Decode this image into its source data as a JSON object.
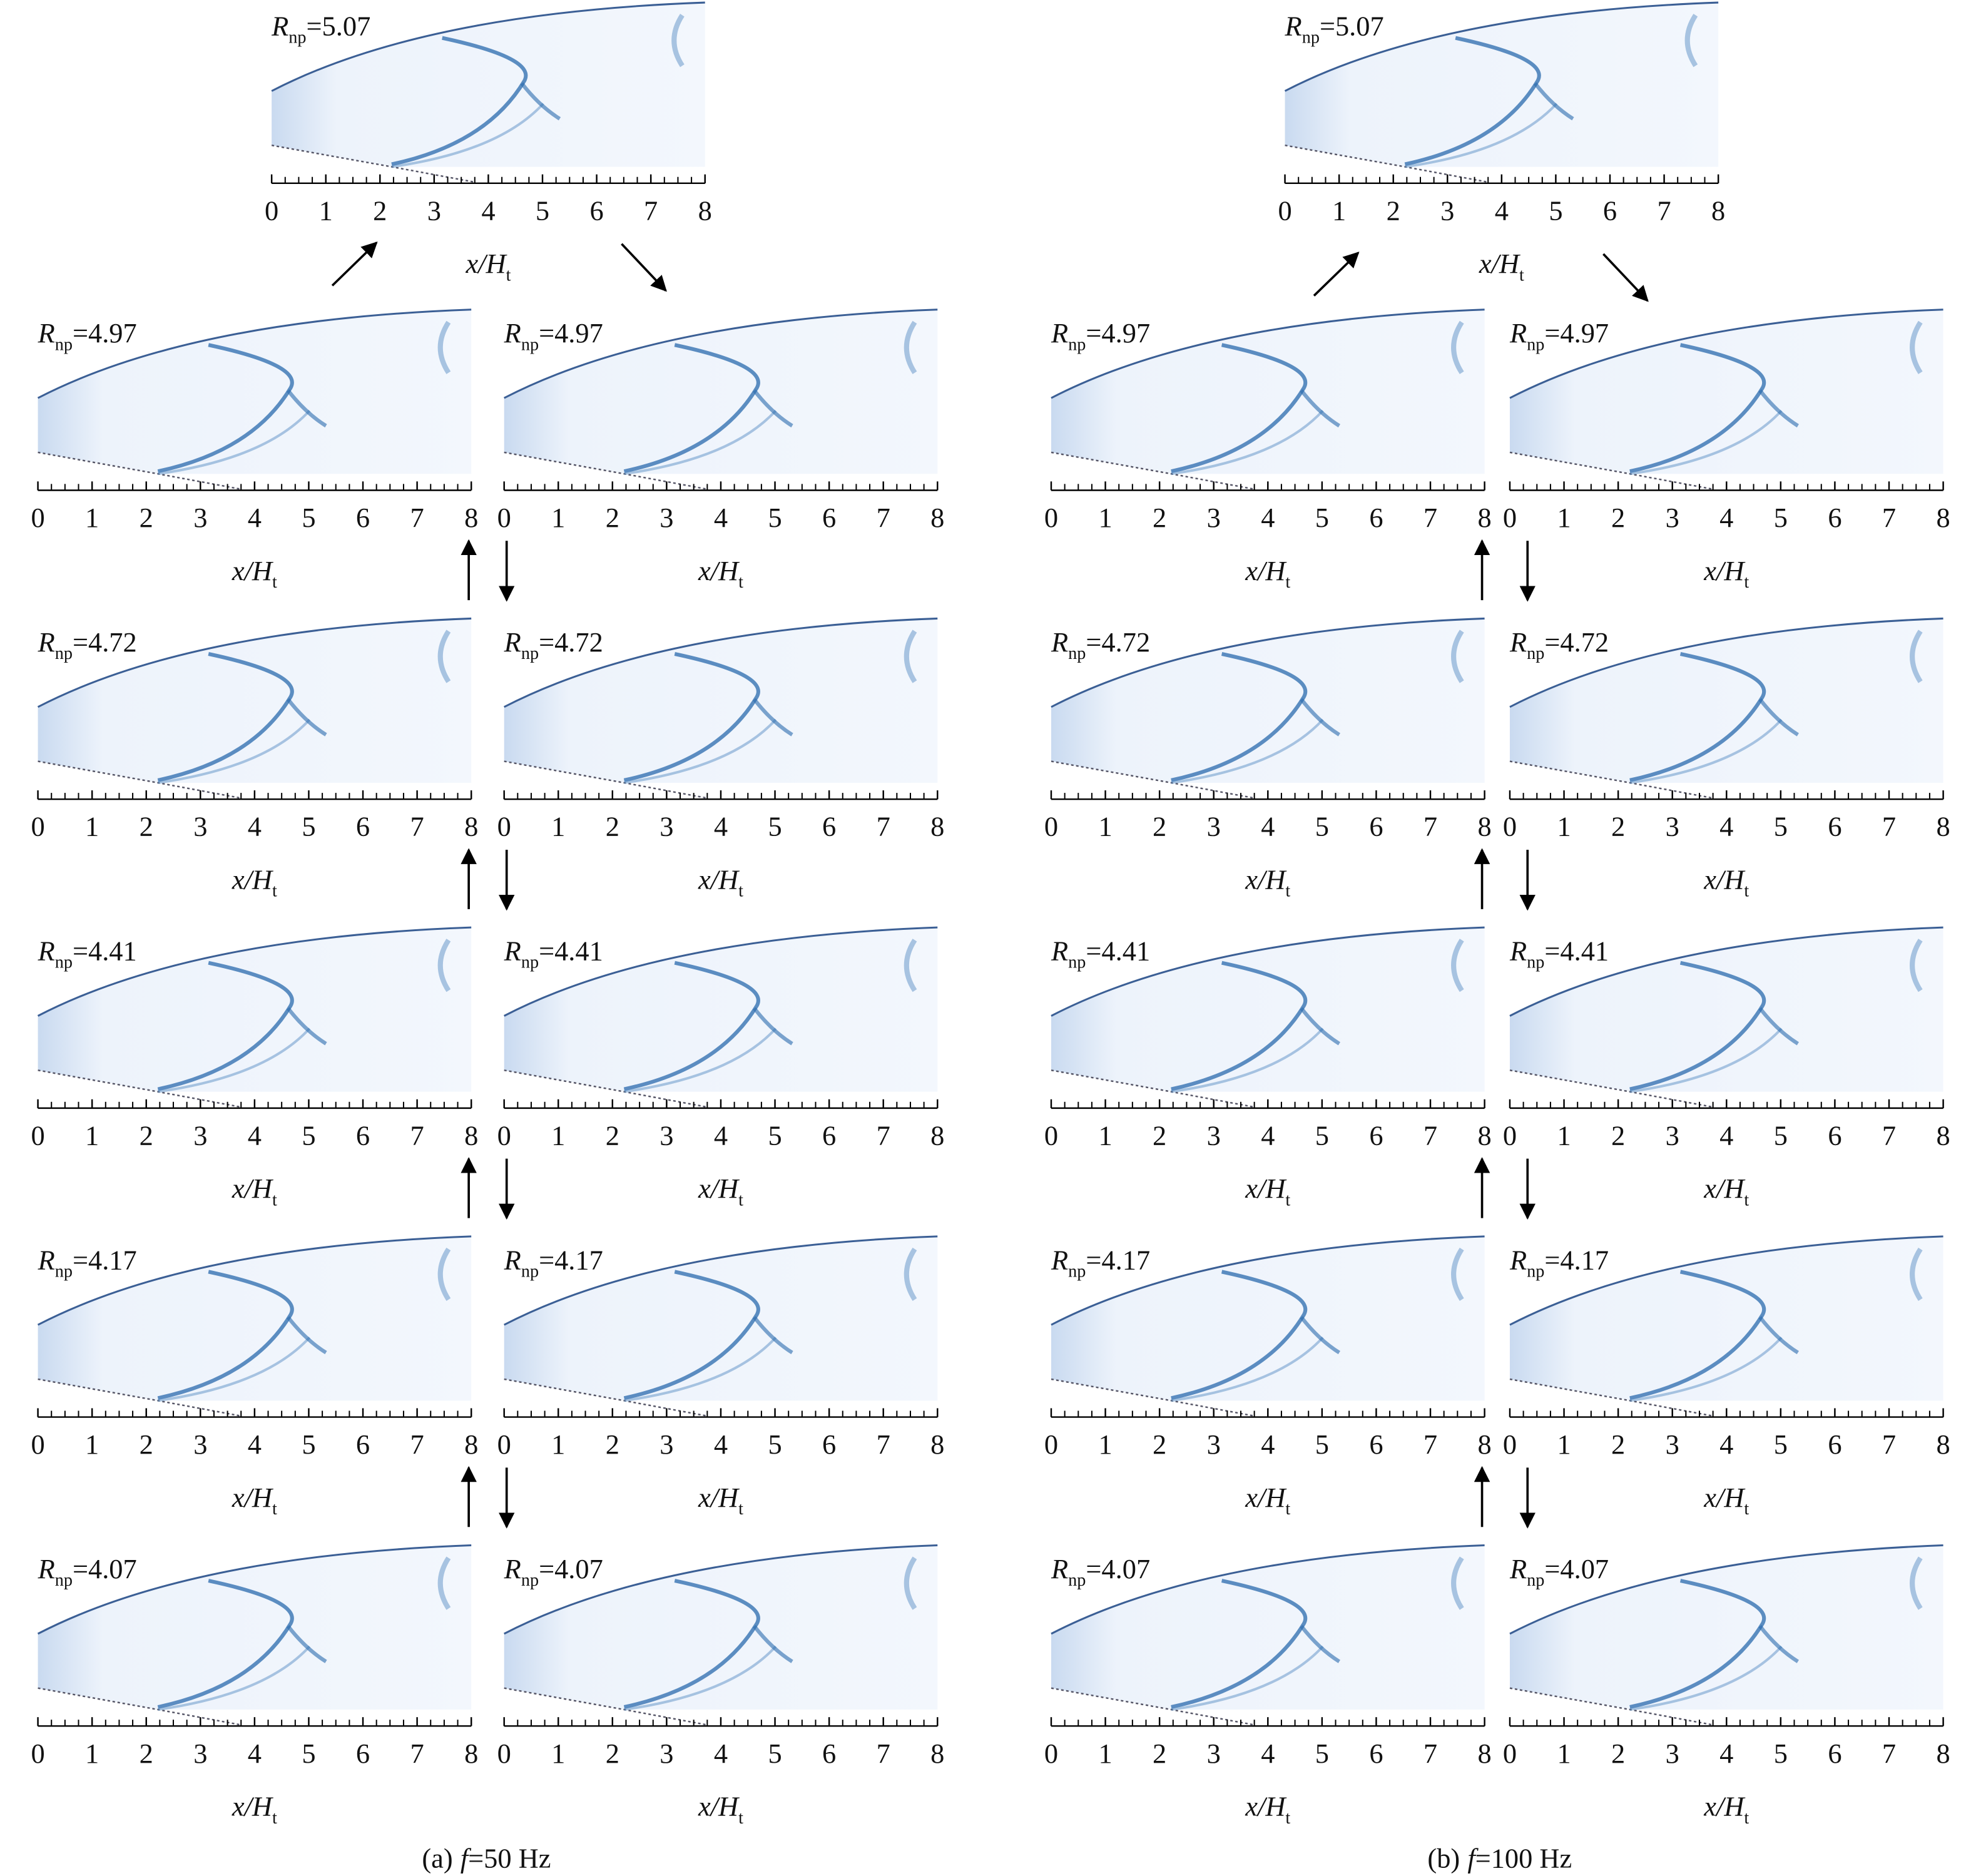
{
  "rnp_symbol": "R",
  "rnp_subscript": "np",
  "x_label": {
    "symbol": "x/H",
    "subscript": "t"
  },
  "x_ticks": [
    0,
    1,
    2,
    3,
    4,
    5,
    6,
    7,
    8
  ],
  "columns": [
    {
      "caption": {
        "prefix": "(a)",
        "symbol": "f",
        "suffix": "=50 Hz"
      },
      "top": "=5.07",
      "rows": [
        [
          "=4.97",
          "=4.97"
        ],
        [
          "=4.72",
          "=4.72"
        ],
        [
          "=4.41",
          "=4.41"
        ],
        [
          "=4.17",
          "=4.17"
        ],
        [
          "=4.07",
          "=4.07"
        ]
      ]
    },
    {
      "caption": {
        "prefix": "(b)",
        "symbol": "f",
        "suffix": "=100 Hz"
      },
      "top": "=5.07",
      "rows": [
        [
          "=4.97",
          "=4.97"
        ],
        [
          "=4.72",
          "=4.72"
        ],
        [
          "=4.41",
          "=4.41"
        ],
        [
          "=4.17",
          "=4.17"
        ],
        [
          "=4.07",
          "=4.07"
        ]
      ]
    }
  ]
}
